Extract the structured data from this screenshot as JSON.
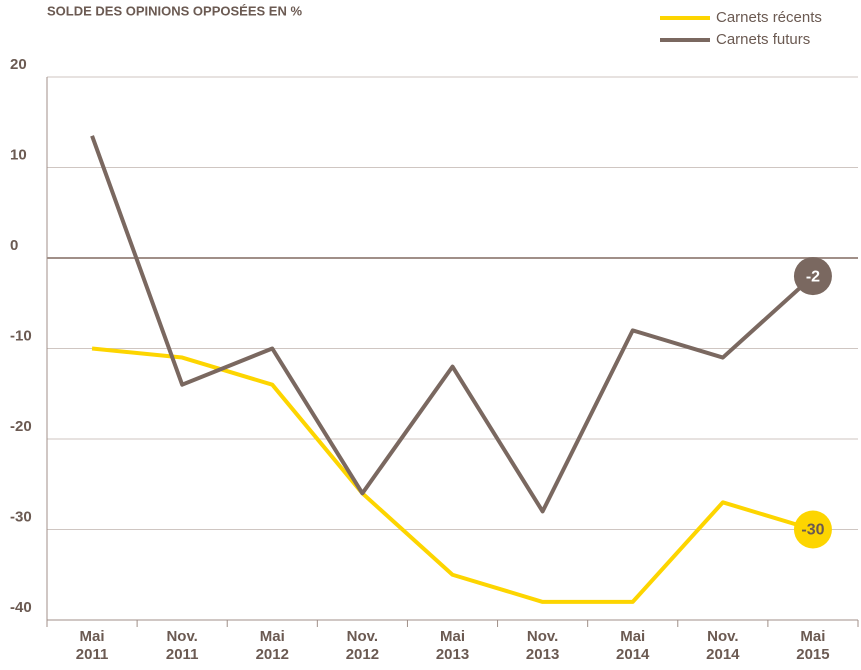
{
  "chart_data": {
    "type": "line",
    "title": "SOLDE DES OPINIONS OPPOSÉES EN %",
    "categories": [
      "Mai 2011",
      "Nov. 2011",
      "Mai 2012",
      "Nov. 2012",
      "Mai 2013",
      "Nov. 2013",
      "Mai 2014",
      "Nov. 2014",
      "Mai 2015"
    ],
    "series": [
      {
        "name": "Carnets récents",
        "color": "#fdd500",
        "values": [
          -10,
          -11,
          -14,
          -26,
          -35,
          -38,
          -38,
          -27,
          -30
        ]
      },
      {
        "name": "Carnets futurs",
        "color": "#7a6860",
        "values": [
          13.5,
          -14,
          -10,
          -26,
          -12,
          -28,
          -8,
          -11,
          -2
        ]
      }
    ],
    "ylim": [
      -40,
      20
    ],
    "yticks": [
      20,
      10,
      0,
      -10,
      -20,
      -30,
      -40
    ],
    "grid": true,
    "legend": "top-right"
  }
}
